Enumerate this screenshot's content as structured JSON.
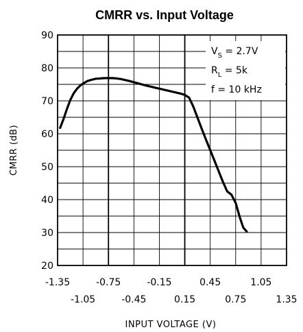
{
  "chart_data": {
    "type": "line",
    "title": "CMRR vs. Input Voltage",
    "xlabel": "INPUT VOLTAGE (V)",
    "ylabel": "CMRR (dB)",
    "xlim": [
      -1.35,
      1.35
    ],
    "ylim": [
      20,
      90
    ],
    "x_ticks_upper": [
      "-1.35",
      "-0.75",
      "-0.15",
      "0.45",
      "1.05"
    ],
    "x_ticks_lower": [
      "-1.05",
      "-0.45",
      "0.15",
      "0.75",
      "1.35"
    ],
    "y_ticks": [
      "90",
      "80",
      "70",
      "60",
      "50",
      "40",
      "30",
      "20"
    ],
    "grid": true,
    "annotations": {
      "vs_label": "V",
      "vs_sub": "S",
      "vs_value": " = 2.7V",
      "rl_label": "R",
      "rl_sub": "L",
      "rl_value": " = 5k",
      "f_text": "f = 10 kHz"
    },
    "series": [
      {
        "x": [
          -1.32,
          -1.28,
          -1.24,
          -1.2,
          -1.16,
          -1.12,
          -1.08,
          -1.04,
          -1.0,
          -0.95,
          -0.9,
          -0.85,
          -0.8,
          -0.75,
          -0.7,
          -0.65,
          -0.6,
          -0.5,
          -0.4,
          -0.3,
          -0.2,
          -0.1,
          0.0,
          0.1,
          0.15,
          0.2,
          0.25,
          0.3,
          0.35,
          0.4,
          0.45,
          0.5,
          0.55,
          0.6,
          0.65,
          0.7,
          0.75,
          0.8,
          0.84,
          0.88
        ],
        "y": [
          61.8,
          64.5,
          67.5,
          70.3,
          72.3,
          73.7,
          74.7,
          75.4,
          76.0,
          76.4,
          76.7,
          76.8,
          76.9,
          76.9,
          76.9,
          76.8,
          76.6,
          76.0,
          75.3,
          74.6,
          74.0,
          73.4,
          72.8,
          72.2,
          71.8,
          71.0,
          68.3,
          64.9,
          61.5,
          58.2,
          55.0,
          51.8,
          48.6,
          45.4,
          42.5,
          41.5,
          39.0,
          34.5,
          31.5,
          30.3
        ]
      }
    ]
  }
}
